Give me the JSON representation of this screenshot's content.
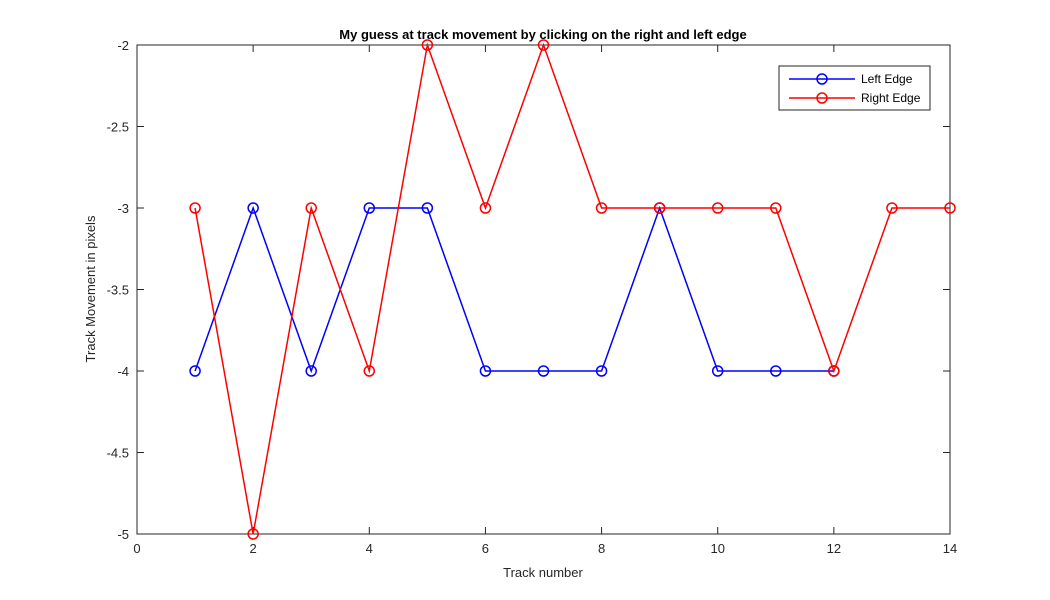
{
  "chart_data": {
    "type": "line",
    "title": "My guess at track movement by clicking on the right and left edge",
    "xlabel": "Track number",
    "ylabel": "Track Movement in pixels",
    "xlim": [
      0,
      14
    ],
    "ylim": [
      -5,
      -2
    ],
    "xticks": [
      0,
      2,
      4,
      6,
      8,
      10,
      12,
      14
    ],
    "yticks": [
      -5,
      -4.5,
      -4,
      -3.5,
      -3,
      -2.5,
      -2
    ],
    "grid": false,
    "legend_position": "top-right",
    "series": [
      {
        "name": "Left Edge",
        "color": "#0000ff",
        "marker": "circle",
        "x": [
          1,
          2,
          3,
          4,
          5,
          6,
          7,
          8,
          9,
          10,
          11,
          12
        ],
        "y": [
          -4,
          -3,
          -4,
          -3,
          -3,
          -4,
          -4,
          -4,
          -3,
          -4,
          -4,
          -4
        ]
      },
      {
        "name": "Right Edge",
        "color": "#ff0000",
        "marker": "circle",
        "x": [
          1,
          2,
          3,
          4,
          5,
          6,
          7,
          8,
          9,
          10,
          11,
          12,
          13,
          14
        ],
        "y": [
          -3,
          -5,
          -3,
          -4,
          -2,
          -3,
          -2,
          -3,
          -3,
          -3,
          -3,
          -4,
          -3,
          -3
        ]
      }
    ]
  }
}
